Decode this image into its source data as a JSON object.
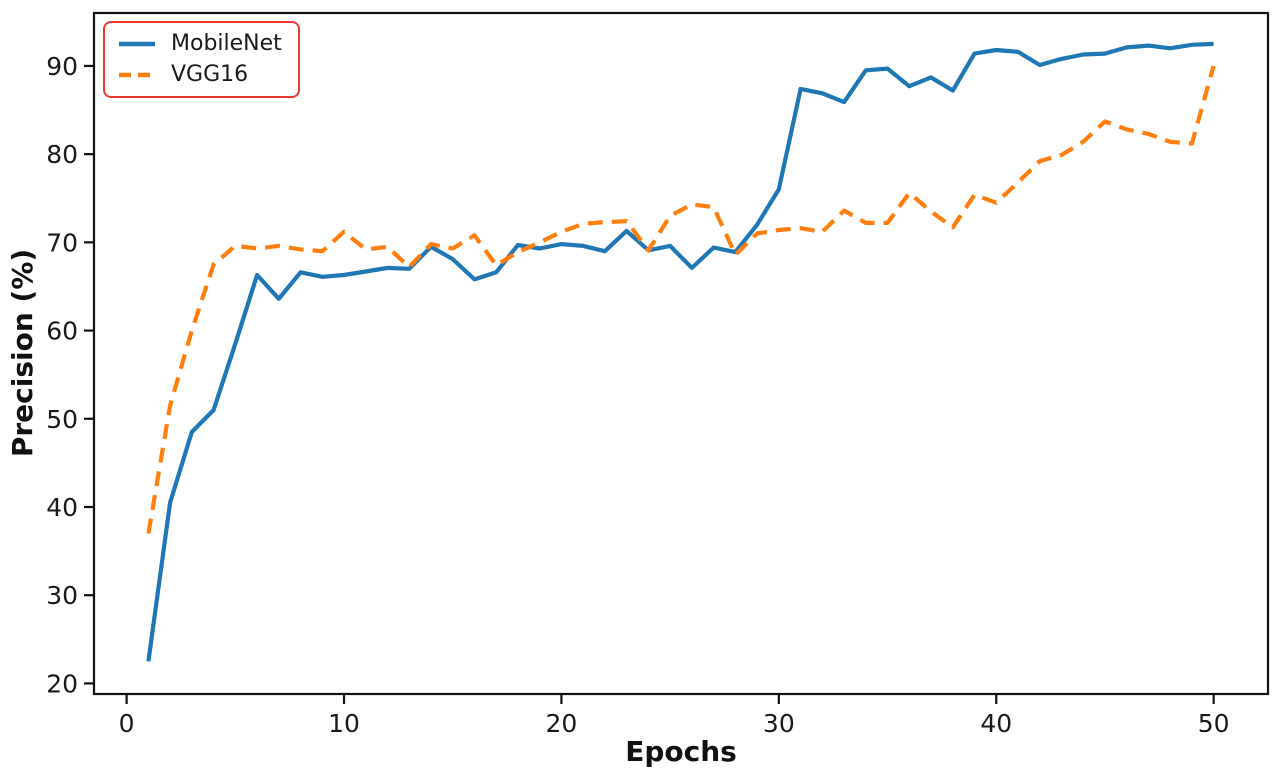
{
  "chart": {
    "legend": {
      "border_color": "#f0372f",
      "position": "upper-left"
    }
  },
  "chart_data": {
    "type": "line",
    "title": "",
    "xlabel": "Epochs",
    "ylabel": "Precision (%)",
    "grid": false,
    "legend_position": "upper-left",
    "xlim": [
      -1.5,
      52.5
    ],
    "ylim": [
      18.8,
      96.0
    ],
    "xticks": [
      0,
      10,
      20,
      30,
      40,
      50
    ],
    "yticks": [
      20,
      30,
      40,
      50,
      60,
      70,
      80,
      90
    ],
    "x": [
      1,
      2,
      3,
      4,
      5,
      6,
      7,
      8,
      9,
      10,
      11,
      12,
      13,
      14,
      15,
      16,
      17,
      18,
      19,
      20,
      21,
      22,
      23,
      24,
      25,
      26,
      27,
      28,
      29,
      30,
      31,
      32,
      33,
      34,
      35,
      36,
      37,
      38,
      39,
      40,
      41,
      42,
      43,
      44,
      45,
      46,
      47,
      48,
      49,
      50
    ],
    "series": [
      {
        "id": "mobilenet",
        "name": "MobileNet",
        "color": "#1f77b4",
        "line_style": "solid",
        "dash": "none",
        "legend_dash": "none",
        "values": [
          22.5,
          40.5,
          48.5,
          51.0,
          58.5,
          66.3,
          63.6,
          66.6,
          66.1,
          66.3,
          66.7,
          67.1,
          67.0,
          69.5,
          68.1,
          65.8,
          66.6,
          69.7,
          69.3,
          69.8,
          69.6,
          69.0,
          71.3,
          69.1,
          69.6,
          67.1,
          69.4,
          68.9,
          72.0,
          76.0,
          87.4,
          86.9,
          85.9,
          89.5,
          89.7,
          87.7,
          88.7,
          87.2,
          91.4,
          91.8,
          91.6,
          90.1,
          90.8,
          91.3,
          91.4,
          92.1,
          92.3,
          92.0,
          92.4,
          92.5
        ]
      },
      {
        "id": "vgg16",
        "name": "VGG16",
        "color": "#ff7f0e",
        "line_style": "dashed",
        "dash": "15 9",
        "legend_dash": "12 7",
        "values": [
          37.0,
          51.5,
          60.0,
          67.5,
          69.6,
          69.3,
          69.6,
          69.2,
          69.0,
          71.2,
          69.2,
          69.5,
          67.2,
          69.8,
          69.3,
          70.8,
          67.4,
          68.9,
          70.0,
          71.2,
          72.1,
          72.3,
          72.4,
          69.1,
          73.0,
          74.3,
          74.0,
          68.6,
          71.0,
          71.4,
          71.6,
          71.2,
          73.6,
          72.2,
          72.2,
          75.6,
          73.5,
          71.7,
          75.4,
          74.5,
          76.8,
          79.2,
          79.9,
          81.4,
          83.7,
          82.8,
          82.3,
          81.4,
          81.2,
          90.0
        ]
      }
    ]
  }
}
